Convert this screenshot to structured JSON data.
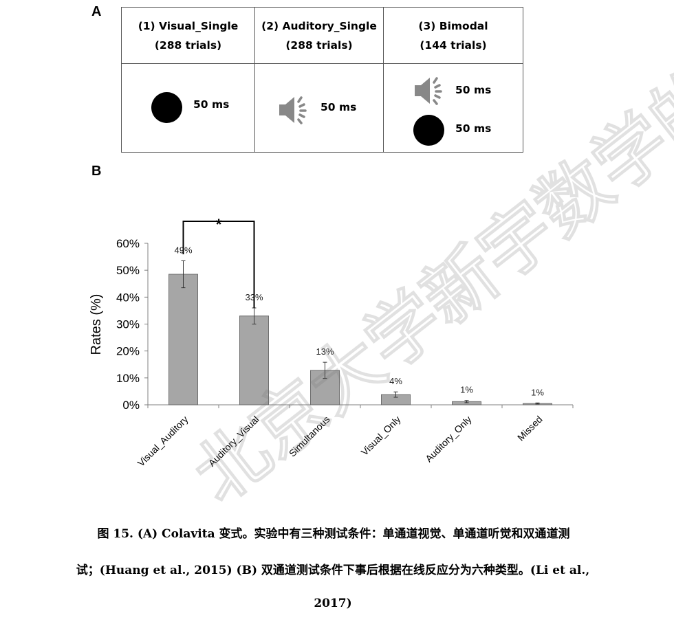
{
  "panel_a": {
    "letter": "A",
    "columns": [
      {
        "title": "(1) Visual_Single",
        "trials": "(288 trials)"
      },
      {
        "title": "(2) Auditory_Single",
        "trials": "(288 trials)"
      },
      {
        "title": "(3) Bimodal",
        "trials": "(144 trials)"
      }
    ],
    "durations": {
      "visual": "50 ms",
      "auditory": "50 ms",
      "bimodal_sound": "50 ms",
      "bimodal_light": "50 ms"
    },
    "icons": [
      "black-circle-icon",
      "speaker-icon"
    ]
  },
  "panel_b": {
    "letter": "B",
    "significance_marker": "*"
  },
  "chart_data": {
    "type": "bar",
    "categories": [
      "Visual_Auditory",
      "Auditory_Visual",
      "Simultanous",
      "Visual_Only",
      "Auditory_Only",
      "Missed"
    ],
    "values": [
      48.5,
      33,
      12.8,
      3.8,
      1.2,
      0.5
    ],
    "errors": [
      5,
      3,
      3,
      1,
      0.4,
      0.2
    ],
    "data_labels": [
      "49%",
      "33%",
      "13%",
      "4%",
      "1%",
      "1%"
    ],
    "ylabel": "Rates (%)",
    "yticks": [
      "0%",
      "10%",
      "20%",
      "30%",
      "40%",
      "50%",
      "60%"
    ],
    "ylim": [
      0,
      60
    ],
    "bar_color": "#a6a6a6",
    "grid": false,
    "significance": {
      "between": [
        "Visual_Auditory",
        "Auditory_Visual"
      ],
      "marker": "*"
    }
  },
  "caption": {
    "line1": "图 15. (A) Colavita 变式。实验中有三种测试条件：单通道视觉、单通道听觉和双通道测",
    "line2": "试；(Huang et al., 2015) (B)  双通道测试条件下事后根据在线反应分为六种类型。(Li et al.,",
    "line3": "2017)"
  },
  "watermark": "北京大学新宇数学的正宗"
}
